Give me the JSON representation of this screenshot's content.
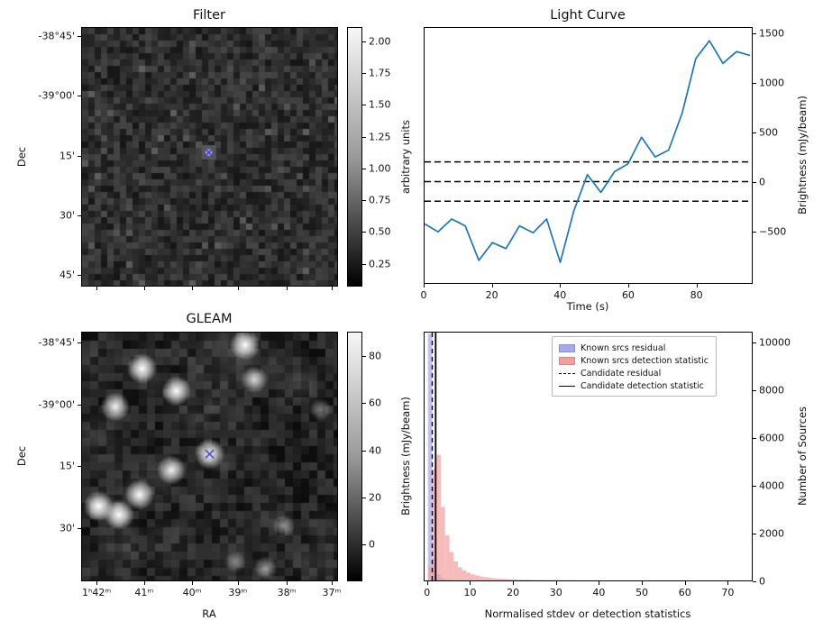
{
  "figure": {
    "background": "#ffffff"
  },
  "chart_data": [
    {
      "type": "heatmap",
      "title": "Filter",
      "ylabel": "Dec",
      "yticklabels": [
        "-38°45'",
        "-39°00'",
        "15'",
        "30'",
        "45'"
      ],
      "description": "grayscale noise image with faint bright source at centre marked with a cross",
      "colorbar": {
        "label": "arbitrary units",
        "ticks": [
          2.0,
          1.75,
          1.5,
          1.25,
          1.0,
          0.75,
          0.5,
          0.25
        ],
        "range": [
          0.07,
          2.12
        ]
      },
      "marker": {
        "symbol": "x",
        "color": "#3b3bd6",
        "x_frac": 0.497,
        "y_frac": 0.483
      }
    },
    {
      "type": "line",
      "title": "Light Curve",
      "xlabel": "Time (s)",
      "ylabel": "Brightness (mJy/beam)",
      "line_color": "#1f77b4",
      "x": [
        0,
        4,
        8,
        12,
        16,
        20,
        24,
        28,
        32,
        36,
        40,
        44,
        48,
        52,
        56,
        60,
        64,
        68,
        72,
        76,
        80,
        84,
        88,
        92,
        96
      ],
      "y": [
        -430,
        -510,
        -380,
        -450,
        -800,
        -620,
        -680,
        -450,
        -520,
        -380,
        -820,
        -300,
        70,
        -110,
        100,
        180,
        450,
        250,
        320,
        700,
        1250,
        1430,
        1200,
        1320,
        1280
      ],
      "hlines": {
        "values": [
          200,
          0,
          -200
        ],
        "style": "dashed",
        "color": "#000000"
      },
      "xlim": [
        0,
        96.5
      ],
      "ylim": [
        -1030,
        1560
      ],
      "xticks": [
        0,
        20,
        40,
        60,
        80
      ],
      "yticks": [
        1500,
        1000,
        500,
        0,
        -500
      ],
      "grid": false
    },
    {
      "type": "heatmap",
      "title": "GLEAM",
      "xlabel": "RA",
      "ylabel": "Dec",
      "xticklabels": [
        "1ʰ42ᵐ",
        "41ᵐ",
        "40ᵐ",
        "39ᵐ",
        "38ᵐ",
        "37ᵐ"
      ],
      "yticklabels": [
        "-38°45'",
        "-39°00'",
        "15'",
        "30'"
      ],
      "description": "grayscale sky map with several bright point sources; candidate source marked with a cross",
      "colorbar": {
        "label": "Brightness (mJy/beam)",
        "ticks": [
          80,
          60,
          40,
          20,
          0
        ],
        "range": [
          -12,
          95
        ]
      },
      "sources": [
        [
          0.64,
          0.05,
          1.0
        ],
        [
          0.235,
          0.145,
          1.0
        ],
        [
          0.37,
          0.235,
          0.95
        ],
        [
          0.675,
          0.19,
          0.75
        ],
        [
          0.13,
          0.3,
          0.9
        ],
        [
          0.935,
          0.31,
          0.4
        ],
        [
          0.5,
          0.49,
          1.0
        ],
        [
          0.35,
          0.555,
          0.9
        ],
        [
          0.225,
          0.655,
          0.95
        ],
        [
          0.065,
          0.7,
          1.0
        ],
        [
          0.145,
          0.735,
          1.0
        ],
        [
          0.79,
          0.78,
          0.45
        ],
        [
          0.6,
          0.925,
          0.35
        ],
        [
          0.72,
          0.95,
          0.5
        ]
      ],
      "marker": {
        "symbol": "x",
        "color": "#3b3bd6",
        "x_frac": 0.5,
        "y_frac": 0.49
      }
    },
    {
      "type": "bar",
      "title": "",
      "xlabel": "Normalised stdev or detection statistics",
      "ylabel": "Number of Sources",
      "bin_start": 0,
      "bin_width": 1,
      "series": [
        {
          "name": "Known srcs residual",
          "color": "#a9a9f0",
          "values": [
            10400,
            900,
            260,
            100,
            45,
            22,
            12,
            7,
            5,
            3,
            2,
            2,
            1,
            1,
            1
          ]
        },
        {
          "name": "Known srcs detection statistic",
          "color": "#f2a1a1",
          "values": [
            600,
            4700,
            5300,
            3100,
            1900,
            1200,
            800,
            560,
            420,
            330,
            260,
            210,
            170,
            140,
            115,
            95,
            80,
            68,
            58,
            50,
            43,
            37,
            32,
            28,
            24,
            21,
            18,
            16,
            14,
            12,
            11,
            10,
            9,
            8,
            7,
            6,
            6,
            5,
            5,
            4,
            4,
            3,
            3,
            3,
            2,
            2,
            2,
            2,
            2,
            1,
            1,
            1,
            1,
            1,
            1,
            1,
            1,
            0,
            1,
            0,
            1,
            0,
            0,
            1,
            0,
            0,
            1,
            0,
            0,
            0,
            1,
            0,
            0,
            0,
            0,
            1
          ]
        }
      ],
      "vlines": [
        {
          "name": "Candidate residual",
          "x": 1.0,
          "style": "dashed"
        },
        {
          "name": "Candidate detection statistic",
          "x": 1.8,
          "style": "solid"
        }
      ],
      "xlim": [
        -0.8,
        75.8
      ],
      "ylim": [
        0,
        10450
      ],
      "xticks": [
        0,
        10,
        20,
        30,
        40,
        50,
        60,
        70
      ],
      "yticks": [
        0,
        2000,
        4000,
        6000,
        8000,
        10000
      ],
      "legend": {
        "position": "upper right",
        "entries": [
          "Known srcs residual",
          "Known srcs detection statistic",
          "Candidate residual",
          "Candidate detection statistic"
        ]
      }
    }
  ]
}
